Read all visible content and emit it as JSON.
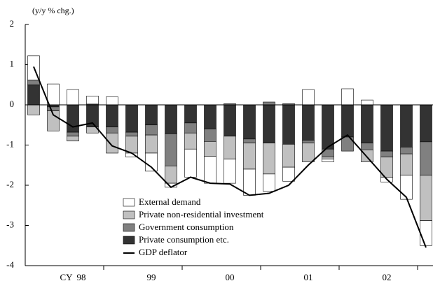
{
  "chart_data": {
    "type": "bar",
    "y_label": "(y/y % chg.)",
    "categories": [
      null,
      null,
      "CY  98",
      null,
      null,
      null,
      "99",
      null,
      null,
      null,
      "00",
      null,
      null,
      null,
      "01",
      null,
      null,
      null,
      "02",
      null,
      null
    ],
    "series": [
      {
        "name": "Private consumption etc.",
        "color": "#333333",
        "values": [
          0.5,
          -0.05,
          -0.68,
          -0.55,
          -0.55,
          -0.68,
          -0.5,
          -0.72,
          -0.45,
          -0.6,
          -0.78,
          -0.85,
          -0.95,
          -0.98,
          -0.88,
          -1.1,
          -0.8,
          -0.95,
          -1.15,
          -1.05,
          -0.92
        ]
      },
      {
        "name": "Government consumption",
        "color": "#808080",
        "values": [
          0.12,
          -0.1,
          -0.1,
          0.02,
          -0.15,
          -0.1,
          -0.25,
          -0.8,
          -0.25,
          -0.31,
          0.03,
          -0.1,
          0.07,
          0.03,
          -0.07,
          -0.2,
          -0.35,
          -0.17,
          -0.15,
          -0.17,
          -0.83
        ]
      },
      {
        "name": "Private non-residential investment",
        "color": "#c0c0c0",
        "values": [
          -0.25,
          -0.5,
          -0.12,
          -0.15,
          -0.5,
          -0.42,
          -0.45,
          -0.43,
          -0.4,
          -0.37,
          -0.57,
          -0.65,
          -0.77,
          -0.57,
          -0.47,
          -0.05,
          0,
          -0.3,
          -0.5,
          -0.53,
          -1.13
        ]
      },
      {
        "name": "External demand",
        "color": "#ffffff",
        "values": [
          0.6,
          0.52,
          0.38,
          0.2,
          0.2,
          -0.1,
          -0.45,
          -0.1,
          -0.7,
          -0.67,
          -0.6,
          -0.65,
          -0.43,
          -0.35,
          0.38,
          -0.07,
          0.4,
          0.12,
          -0.12,
          -0.6,
          -0.62
        ]
      }
    ],
    "line": {
      "name": "GDP deflator",
      "color": "#000000",
      "values": [
        0.95,
        -0.25,
        -0.55,
        -0.45,
        -1.02,
        -1.2,
        -1.55,
        -2.05,
        -1.8,
        -1.95,
        -1.97,
        -2.25,
        -2.2,
        -2.0,
        -1.5,
        -1.05,
        -0.75,
        -1.3,
        -1.85,
        -2.3,
        -3.55
      ]
    },
    "ylim": [
      -4,
      2
    ],
    "yticks": [
      -4,
      -3,
      -2,
      -1,
      0,
      1,
      2
    ]
  }
}
